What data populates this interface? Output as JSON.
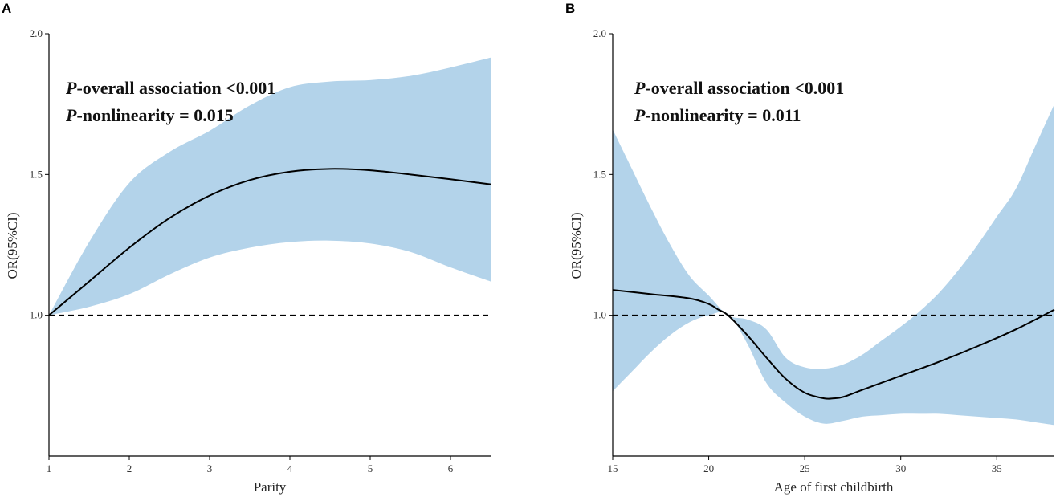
{
  "chart_data": [
    {
      "type": "line",
      "panel_label": "A",
      "xlabel": "Parity",
      "ylabel": "OR(95%CI)",
      "xlim": [
        1,
        6.5
      ],
      "ylim": [
        0.5,
        2.0
      ],
      "xticks": [
        1,
        2,
        3,
        4,
        5,
        6
      ],
      "xtick_labels": [
        "1",
        "2",
        "3",
        "4",
        "5",
        "6"
      ],
      "yticks": [
        1.0,
        1.5,
        2.0
      ],
      "ytick_labels": [
        "1.0",
        "1.5",
        "2.0"
      ],
      "reference_line": 1.0,
      "annotations": [
        {
          "p": "P",
          "text": "-overall association <0.001"
        },
        {
          "p": "P",
          "text": "-nonlinearity = 0.015"
        }
      ],
      "series": [
        {
          "name": "OR",
          "x": [
            1,
            1.5,
            2,
            2.5,
            3,
            3.5,
            4,
            4.5,
            5,
            5.5,
            6,
            6.5
          ],
          "values": [
            1.0,
            1.12,
            1.24,
            1.345,
            1.425,
            1.48,
            1.51,
            1.52,
            1.515,
            1.5,
            1.483,
            1.465
          ]
        },
        {
          "name": "Upper 95% CI",
          "x": [
            1,
            1.5,
            2,
            2.5,
            3,
            3.5,
            4,
            4.5,
            5,
            5.5,
            6,
            6.5
          ],
          "values": [
            1.0,
            1.26,
            1.47,
            1.58,
            1.655,
            1.745,
            1.81,
            1.83,
            1.835,
            1.85,
            1.88,
            1.915
          ]
        },
        {
          "name": "Lower 95% CI",
          "x": [
            1,
            1.5,
            2,
            2.5,
            3,
            3.5,
            4,
            4.5,
            5,
            5.5,
            6,
            6.5
          ],
          "values": [
            1.0,
            1.03,
            1.075,
            1.145,
            1.205,
            1.24,
            1.26,
            1.265,
            1.255,
            1.225,
            1.17,
            1.12
          ]
        }
      ]
    },
    {
      "type": "line",
      "panel_label": "B",
      "xlabel": "Age of first childbirth",
      "ylabel": "OR(95%CI)",
      "xlim": [
        15,
        38
      ],
      "ylim": [
        0.5,
        2.0
      ],
      "xticks": [
        15,
        20,
        25,
        30,
        35
      ],
      "xtick_labels": [
        "15",
        "20",
        "25",
        "30",
        "35"
      ],
      "yticks": [
        1.0,
        1.5,
        2.0
      ],
      "ytick_labels": [
        "1.0",
        "1.5",
        "2.0"
      ],
      "reference_line": 1.0,
      "annotations": [
        {
          "p": "P",
          "text": "-overall association <0.001"
        },
        {
          "p": "P",
          "text": "-nonlinearity = 0.011"
        }
      ],
      "series": [
        {
          "name": "OR",
          "x": [
            15,
            17,
            19,
            20,
            20.5,
            21,
            22,
            23,
            24,
            25,
            26,
            26.5,
            27,
            28,
            30,
            32,
            34,
            36,
            38
          ],
          "values": [
            1.09,
            1.075,
            1.06,
            1.04,
            1.02,
            1.0,
            0.93,
            0.85,
            0.775,
            0.725,
            0.705,
            0.705,
            0.71,
            0.735,
            0.785,
            0.835,
            0.89,
            0.95,
            1.02
          ]
        },
        {
          "name": "Upper 95% CI",
          "x": [
            15,
            16,
            17,
            18,
            19,
            20,
            21,
            22,
            23,
            24,
            25,
            26,
            27,
            28,
            29,
            30,
            31,
            32,
            33,
            34,
            35,
            36,
            37,
            38
          ],
          "values": [
            1.66,
            1.52,
            1.38,
            1.25,
            1.14,
            1.07,
            1.0,
            0.985,
            0.95,
            0.85,
            0.815,
            0.81,
            0.825,
            0.86,
            0.91,
            0.96,
            1.015,
            1.08,
            1.16,
            1.25,
            1.35,
            1.45,
            1.6,
            1.75
          ]
        },
        {
          "name": "Lower 95% CI",
          "x": [
            15,
            16,
            17,
            18,
            19,
            20,
            21,
            22,
            23,
            24,
            25,
            26,
            27,
            28,
            29,
            30,
            31,
            32,
            33,
            34,
            35,
            36,
            37,
            38
          ],
          "values": [
            0.73,
            0.8,
            0.87,
            0.93,
            0.975,
            1.0,
            1.005,
            0.9,
            0.76,
            0.69,
            0.64,
            0.615,
            0.625,
            0.64,
            0.645,
            0.65,
            0.65,
            0.65,
            0.645,
            0.64,
            0.635,
            0.63,
            0.62,
            0.61
          ]
        }
      ]
    }
  ]
}
